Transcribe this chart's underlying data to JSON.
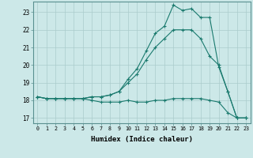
{
  "xlabel": "Humidex (Indice chaleur)",
  "bg_color": "#cce8e8",
  "line_color": "#1a7a6e",
  "grid_color": "#aacccc",
  "xlim": [
    -0.5,
    23.5
  ],
  "ylim": [
    16.7,
    23.6
  ],
  "yticks": [
    17,
    18,
    19,
    20,
    21,
    22,
    23
  ],
  "xticks": [
    0,
    1,
    2,
    3,
    4,
    5,
    6,
    7,
    8,
    9,
    10,
    11,
    12,
    13,
    14,
    15,
    16,
    17,
    18,
    19,
    20,
    21,
    22,
    23
  ],
  "line1_x": [
    0,
    1,
    2,
    3,
    4,
    5,
    6,
    7,
    8,
    9,
    10,
    11,
    12,
    13,
    14,
    15,
    16,
    17,
    18,
    19,
    20,
    21,
    22,
    23
  ],
  "line1_y": [
    18.2,
    18.1,
    18.1,
    18.1,
    18.1,
    18.1,
    18.0,
    17.9,
    17.9,
    17.9,
    18.0,
    17.9,
    17.9,
    18.0,
    18.0,
    18.1,
    18.1,
    18.1,
    18.1,
    18.0,
    17.9,
    17.3,
    17.0,
    17.0
  ],
  "line2_x": [
    0,
    1,
    2,
    3,
    4,
    5,
    6,
    7,
    8,
    9,
    10,
    11,
    12,
    13,
    14,
    15,
    16,
    17,
    18,
    19,
    20,
    21,
    22,
    23
  ],
  "line2_y": [
    18.2,
    18.1,
    18.1,
    18.1,
    18.1,
    18.1,
    18.2,
    18.2,
    18.3,
    18.5,
    19.0,
    19.5,
    20.3,
    21.0,
    21.5,
    22.0,
    22.0,
    22.0,
    21.5,
    20.5,
    20.0,
    18.5,
    17.0,
    17.0
  ],
  "line3_x": [
    0,
    1,
    2,
    3,
    4,
    5,
    6,
    7,
    8,
    9,
    10,
    11,
    12,
    13,
    14,
    15,
    16,
    17,
    18,
    19,
    20,
    21,
    22,
    23
  ],
  "line3_y": [
    18.2,
    18.1,
    18.1,
    18.1,
    18.1,
    18.1,
    18.2,
    18.2,
    18.3,
    18.5,
    19.2,
    19.8,
    20.8,
    21.8,
    22.2,
    23.4,
    23.1,
    23.2,
    22.7,
    22.7,
    19.9,
    18.5,
    17.0,
    17.0
  ]
}
